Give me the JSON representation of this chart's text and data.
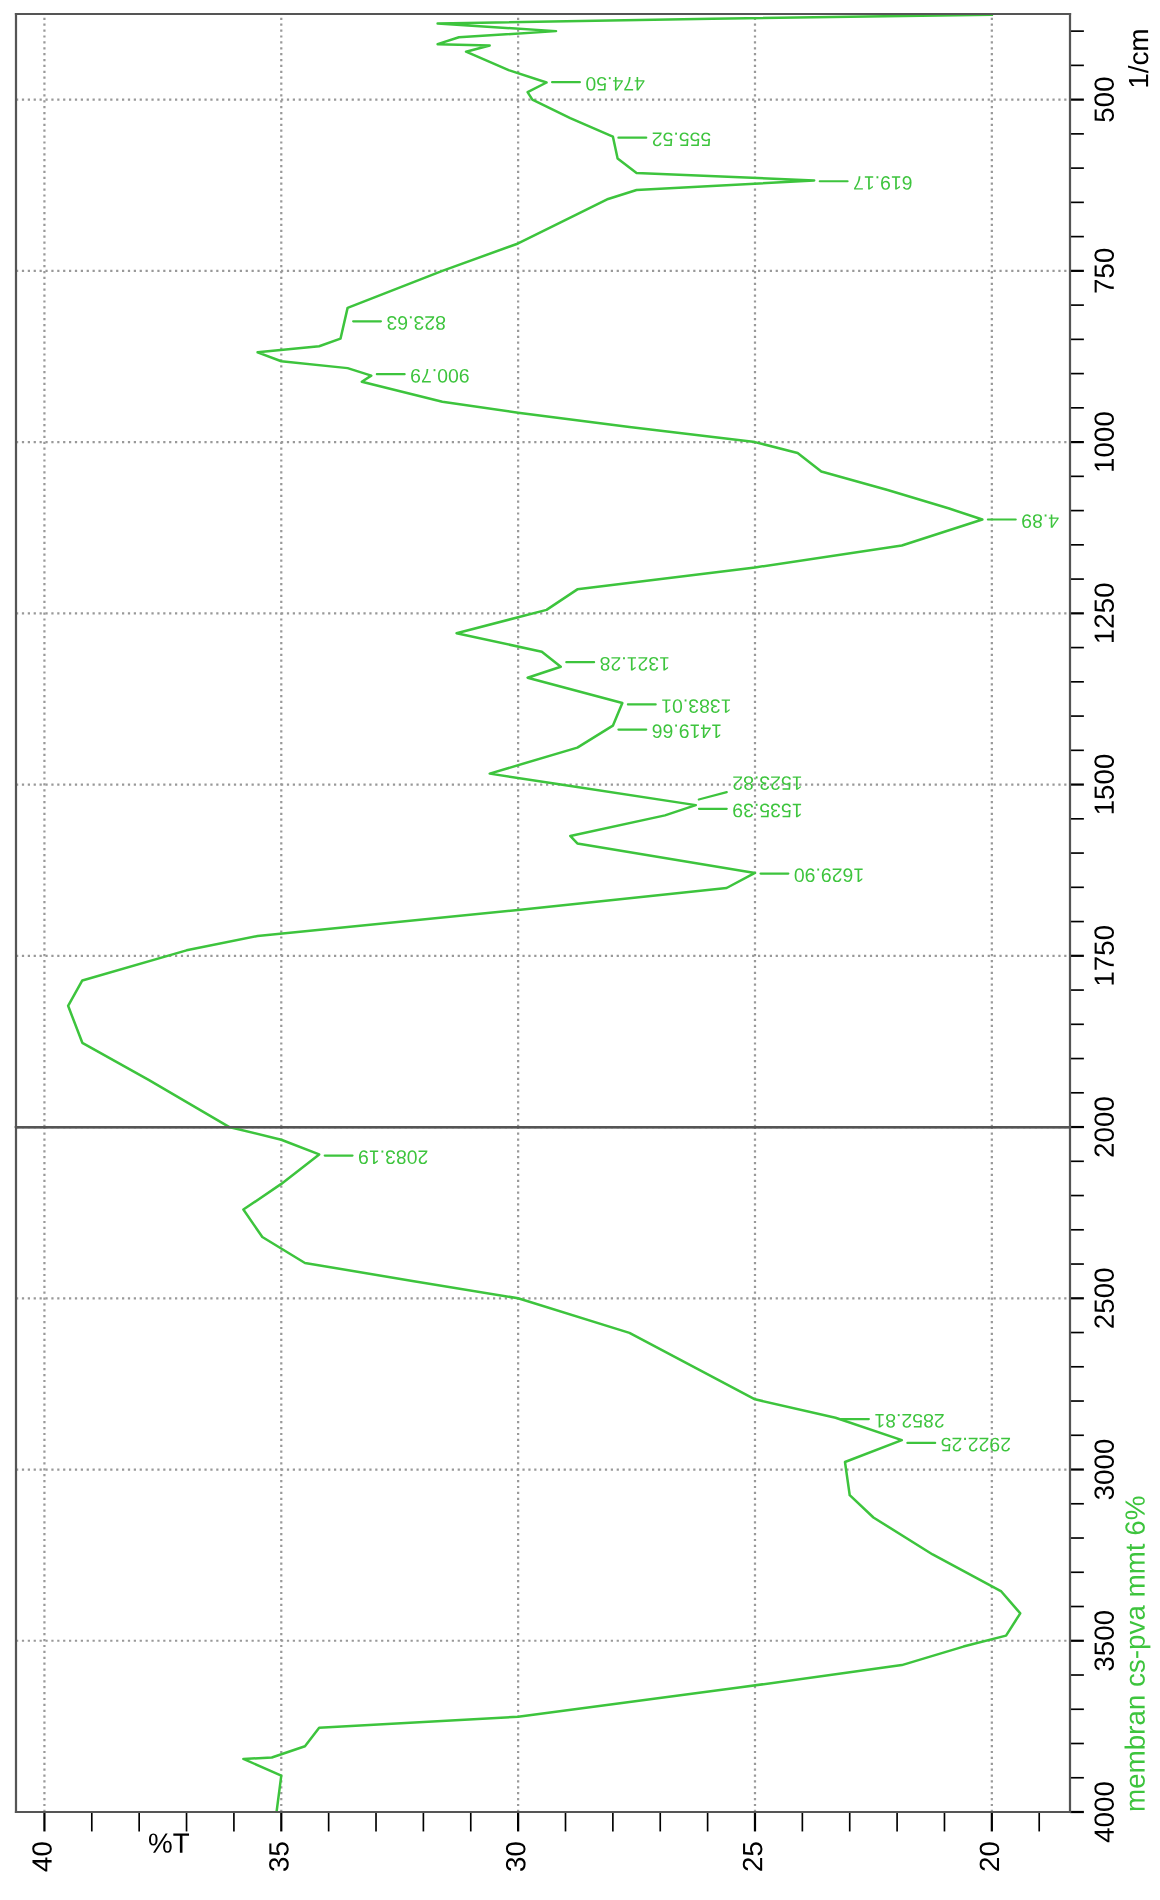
{
  "chart_data": [
    {
      "type": "line",
      "ylabel": "1/cm",
      "tick_labels": "y",
      "xlim": [
        40.6,
        18.35
      ],
      "xticks": [
        40,
        35,
        30,
        25,
        20
      ],
      "ylim": [
        2000,
        375
      ],
      "yticks": [
        500,
        750,
        1000,
        1250,
        1500,
        1750
      ],
      "grid": true,
      "marker": "none",
      "line_style": "solid",
      "series": [
        {
          "color": "#3dc43d",
          "x": [
            20.0,
            25.9,
            31.7,
            29.2,
            31.25,
            31.7,
            30.6,
            31.1,
            30.2,
            29.4,
            29.8,
            29.7,
            28.9,
            28.0,
            27.9,
            27.5,
            23.75,
            27.5,
            28.1,
            28.75,
            30.0,
            31.6,
            33.6,
            33.75,
            34.2,
            35.5,
            35.0,
            33.6,
            33.1,
            33.3,
            31.6,
            30.0,
            27.65,
            25.0,
            24.1,
            23.6,
            22.2,
            20.9,
            20.2,
            21.9,
            25.0,
            28.75,
            29.4,
            31.3,
            29.5,
            29.1,
            29.8,
            27.8,
            28.0,
            28.75,
            30.6,
            29.1,
            26.25,
            26.9,
            28.9,
            28.75,
            25.0,
            25.6,
            30.0,
            35.5,
            37.0,
            39.2,
            39.5,
            39.2,
            37.8,
            36.1
          ],
          "values": [
            376,
            382,
            389,
            400,
            409,
            419,
            421,
            430,
            457,
            475,
            489,
            500,
            527,
            554,
            586,
            607,
            618,
            632,
            645,
            667,
            710,
            750,
            804,
            849,
            860,
            869,
            882,
            892,
            903,
            912,
            941,
            957,
            978,
            1000,
            1016,
            1043,
            1070,
            1097,
            1113,
            1151,
            1183,
            1215,
            1245,
            1279,
            1306,
            1328,
            1344,
            1381,
            1414,
            1446,
            1484,
            1500,
            1530,
            1545,
            1575,
            1586,
            1629,
            1651,
            1683,
            1721,
            1742,
            1786,
            1823,
            1877,
            1931,
            2000
          ]
        }
      ],
      "annotations": [
        {
          "text": "474.50",
          "x": 29.4,
          "y": 474.5
        },
        {
          "text": "555.52",
          "x": 28.0,
          "y": 555.52
        },
        {
          "text": "619.17",
          "x": 23.75,
          "y": 619.17
        },
        {
          "text": "823.63",
          "x": 33.6,
          "y": 823.63
        },
        {
          "text": "900.79",
          "x": 33.1,
          "y": 900.79
        },
        {
          "text": "4.89",
          "x": 20.2,
          "y": 1113
        },
        {
          "text": "1321.28",
          "x": 29.1,
          "y": 1321.28
        },
        {
          "text": "1383.01",
          "x": 27.8,
          "y": 1383.01
        },
        {
          "text": "1419.66",
          "x": 28.0,
          "y": 1419.66
        },
        {
          "text": "1523.82",
          "x": 26.3,
          "y": 1523.82
        },
        {
          "text": "1535.39",
          "x": 26.3,
          "y": 1535.39
        },
        {
          "text": "1629.90",
          "x": 25.0,
          "y": 1629.9
        }
      ]
    },
    {
      "type": "line",
      "xlabel": "%T",
      "xlim": [
        40.6,
        18.35
      ],
      "xticks": [
        40,
        35,
        30,
        25,
        20
      ],
      "ylim": [
        4000,
        2000
      ],
      "yticks": [
        2000,
        2500,
        3000,
        3500,
        4000
      ],
      "grid": true,
      "legend": false,
      "marker": "none",
      "line_style": "solid",
      "ref_lines": [
        {
          "axis": "y",
          "value": 2000,
          "color": "#555555",
          "line_style": "solid"
        }
      ],
      "series": [
        {
          "name": "membran cs-pva mmt 6%",
          "color": "#3dc43d",
          "x": [
            36.1,
            35.0,
            34.2,
            35.0,
            35.8,
            35.4,
            34.5,
            32.2,
            30.0,
            27.65,
            25.0,
            23.3,
            21.9,
            23.1,
            23.0,
            22.5,
            21.25,
            19.8,
            19.4,
            19.7,
            20.6,
            21.9,
            25.3,
            30.0,
            34.2,
            34.5,
            35.2,
            35.8,
            35.0,
            35.1
          ],
          "values": [
            2000,
            2037,
            2080,
            2166,
            2241,
            2321,
            2397,
            2450,
            2500,
            2601,
            2795,
            2849,
            2914,
            2978,
            3075,
            3140,
            3248,
            3356,
            3420,
            3485,
            3517,
            3571,
            3636,
            3722,
            3754,
            3808,
            3841,
            3845,
            3894,
            4000
          ]
        }
      ],
      "annotations": [
        {
          "text": "2083.19",
          "x": 34.2,
          "y": 2083.19
        },
        {
          "text": "2852.81",
          "x": 23.3,
          "y": 2852.81
        },
        {
          "text": "2922.25",
          "x": 21.9,
          "y": 2922.25
        }
      ]
    }
  ]
}
